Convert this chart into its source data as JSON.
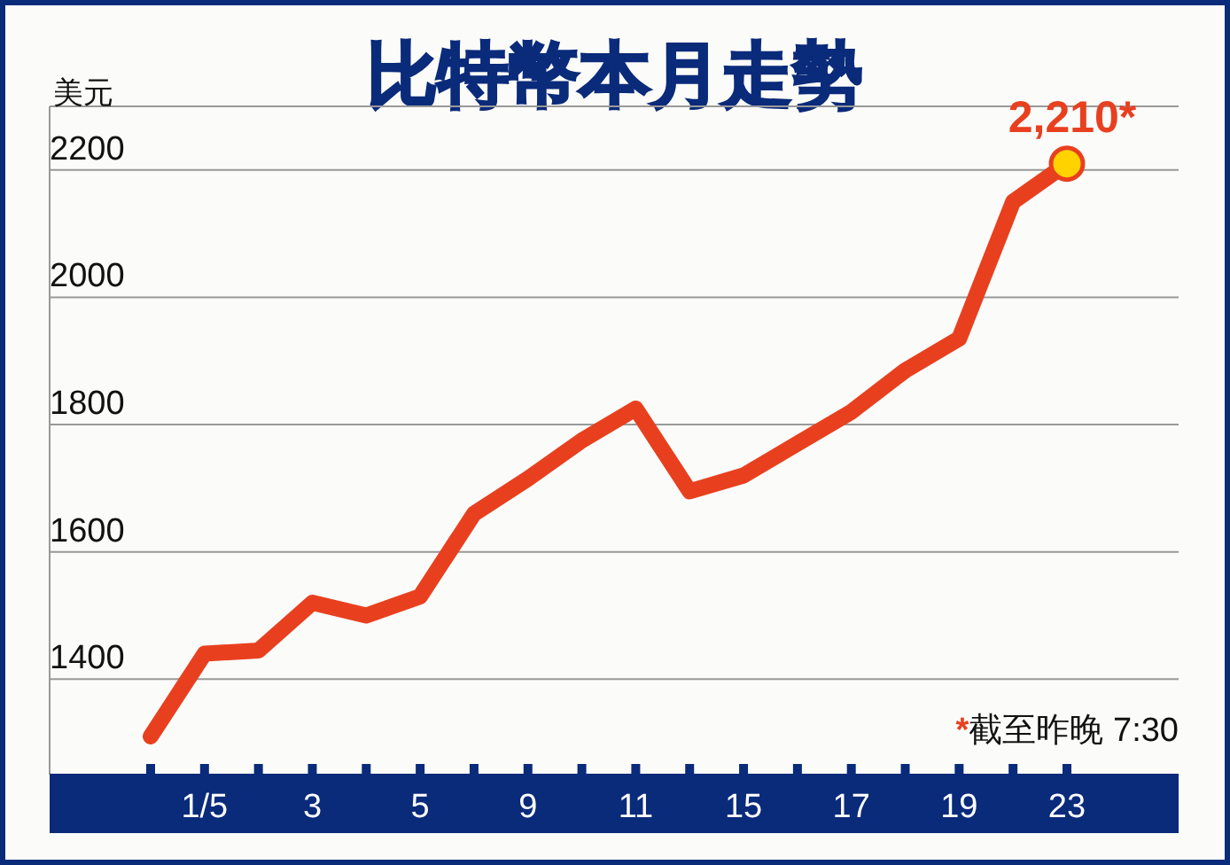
{
  "chart_data": {
    "type": "line",
    "title": "比特幣本月走勢",
    "ylabel": "美元",
    "categories": [
      null,
      "1/5",
      null,
      "3",
      null,
      "5",
      null,
      "9",
      null,
      "11",
      null,
      "15",
      null,
      "17",
      null,
      "19",
      null,
      "23"
    ],
    "series": [
      {
        "color": "#e8401f",
        "values": [
          1310,
          1440,
          1445,
          1520,
          1500,
          1530,
          1660,
          1715,
          1775,
          1825,
          1695,
          1720,
          1770,
          1820,
          1885,
          1935,
          2150,
          2210
        ]
      }
    ],
    "ylim": [
      1250,
      2300
    ],
    "yticks": [
      1400,
      1600,
      1800,
      2000,
      2200
    ],
    "grid": "y",
    "marker": "none",
    "line_style": "solid",
    "annotations": [
      {
        "text": "2,210*",
        "x": "23",
        "y": 2210
      },
      "*截至昨晚 7:30"
    ]
  }
}
